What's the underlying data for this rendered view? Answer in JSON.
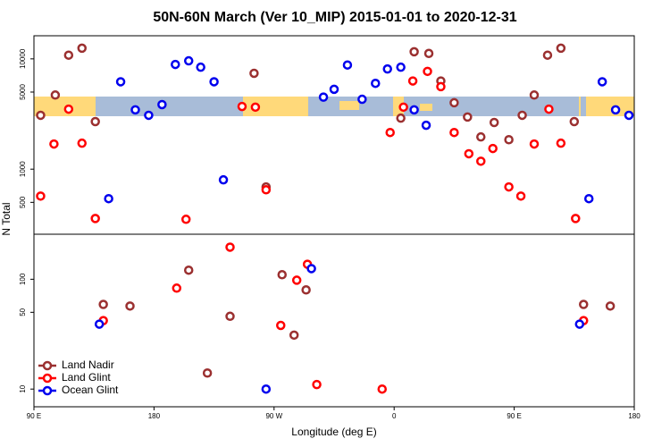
{
  "chart_data": [
    {
      "type": "scatter",
      "title": "50N-60N March (Ver 10_MIP)   2015-01-01 to 2020-12-31",
      "ylabel": "N Total",
      "log_y": true,
      "xlim": [
        90,
        540
      ],
      "ylim": [
        257,
        16200
      ],
      "yticks": [
        500,
        1000,
        5000,
        10000
      ],
      "series": [
        {
          "color": "#9b3030",
          "x": [
            95,
            106,
            116,
            126,
            136,
            255,
            264,
            365,
            375,
            386,
            395,
            405,
            415,
            425,
            435,
            446,
            456,
            465,
            475,
            485,
            495
          ],
          "y": [
            3080,
            4700,
            10800,
            12500,
            2700,
            7400,
            690,
            2900,
            11600,
            11200,
            6300,
            4000,
            2970,
            1960,
            2650,
            1850,
            3080,
            4700,
            10800,
            12500,
            2700
          ]
        },
        {
          "color": "#ff0000",
          "x": [
            95,
            105,
            116,
            126,
            136,
            204,
            246,
            256,
            264,
            357,
            367,
            374,
            385,
            395,
            405,
            416,
            425,
            434,
            446,
            455,
            465,
            476,
            485,
            496
          ],
          "y": [
            570,
            1690,
            3500,
            1720,
            357,
            351,
            3700,
            3650,
            650,
            2150,
            3650,
            6300,
            7700,
            5600,
            2150,
            1380,
            1180,
            1540,
            690,
            570,
            1690,
            3500,
            1720,
            357
          ]
        },
        {
          "color": "#0000ee",
          "x": [
            146,
            155,
            166,
            176,
            186,
            196,
            206,
            215,
            225,
            232,
            307,
            315,
            325,
            336,
            346,
            355,
            365,
            375,
            384,
            506,
            516,
            526,
            536
          ],
          "y": [
            540,
            6200,
            3450,
            3080,
            3850,
            8900,
            9600,
            8400,
            6200,
            800,
            4500,
            5300,
            8800,
            4300,
            6000,
            8100,
            8400,
            3450,
            2500,
            540,
            6200,
            3450,
            3080
          ]
        }
      ]
    },
    {
      "type": "scatter",
      "xlabel": "Longitude (deg E)",
      "log_y": true,
      "legend": "lower left",
      "xlim": [
        90,
        540
      ],
      "xticks": [
        {
          "value": 90,
          "label": "90 E"
        },
        {
          "value": 180,
          "label": "180"
        },
        {
          "value": 270,
          "label": "90 W"
        },
        {
          "value": 360,
          "label": "0"
        },
        {
          "value": 450,
          "label": "90 E"
        },
        {
          "value": 540,
          "label": "180"
        }
      ],
      "ylim": [
        6.9,
        257
      ],
      "yticks": [
        10,
        50,
        100
      ],
      "series": [
        {
          "name": "Land Nadir",
          "color": "#9b3030",
          "x": [
            142,
            162,
            206,
            237,
            220,
            276,
            285,
            294,
            502,
            522
          ],
          "y": [
            59,
            57,
            121,
            46,
            14,
            110,
            31,
            80,
            59,
            57
          ]
        },
        {
          "name": "Land Glint",
          "color": "#ff0000",
          "x": [
            142,
            197,
            237,
            275,
            287,
            295,
            302,
            351,
            502
          ],
          "y": [
            42,
            83,
            196,
            38,
            98,
            137,
            11,
            10,
            42
          ]
        },
        {
          "name": "Ocean Glint",
          "color": "#0000ee",
          "x": [
            139,
            264,
            298,
            499
          ],
          "y": [
            39,
            10,
            125,
            39
          ]
        }
      ]
    }
  ]
}
